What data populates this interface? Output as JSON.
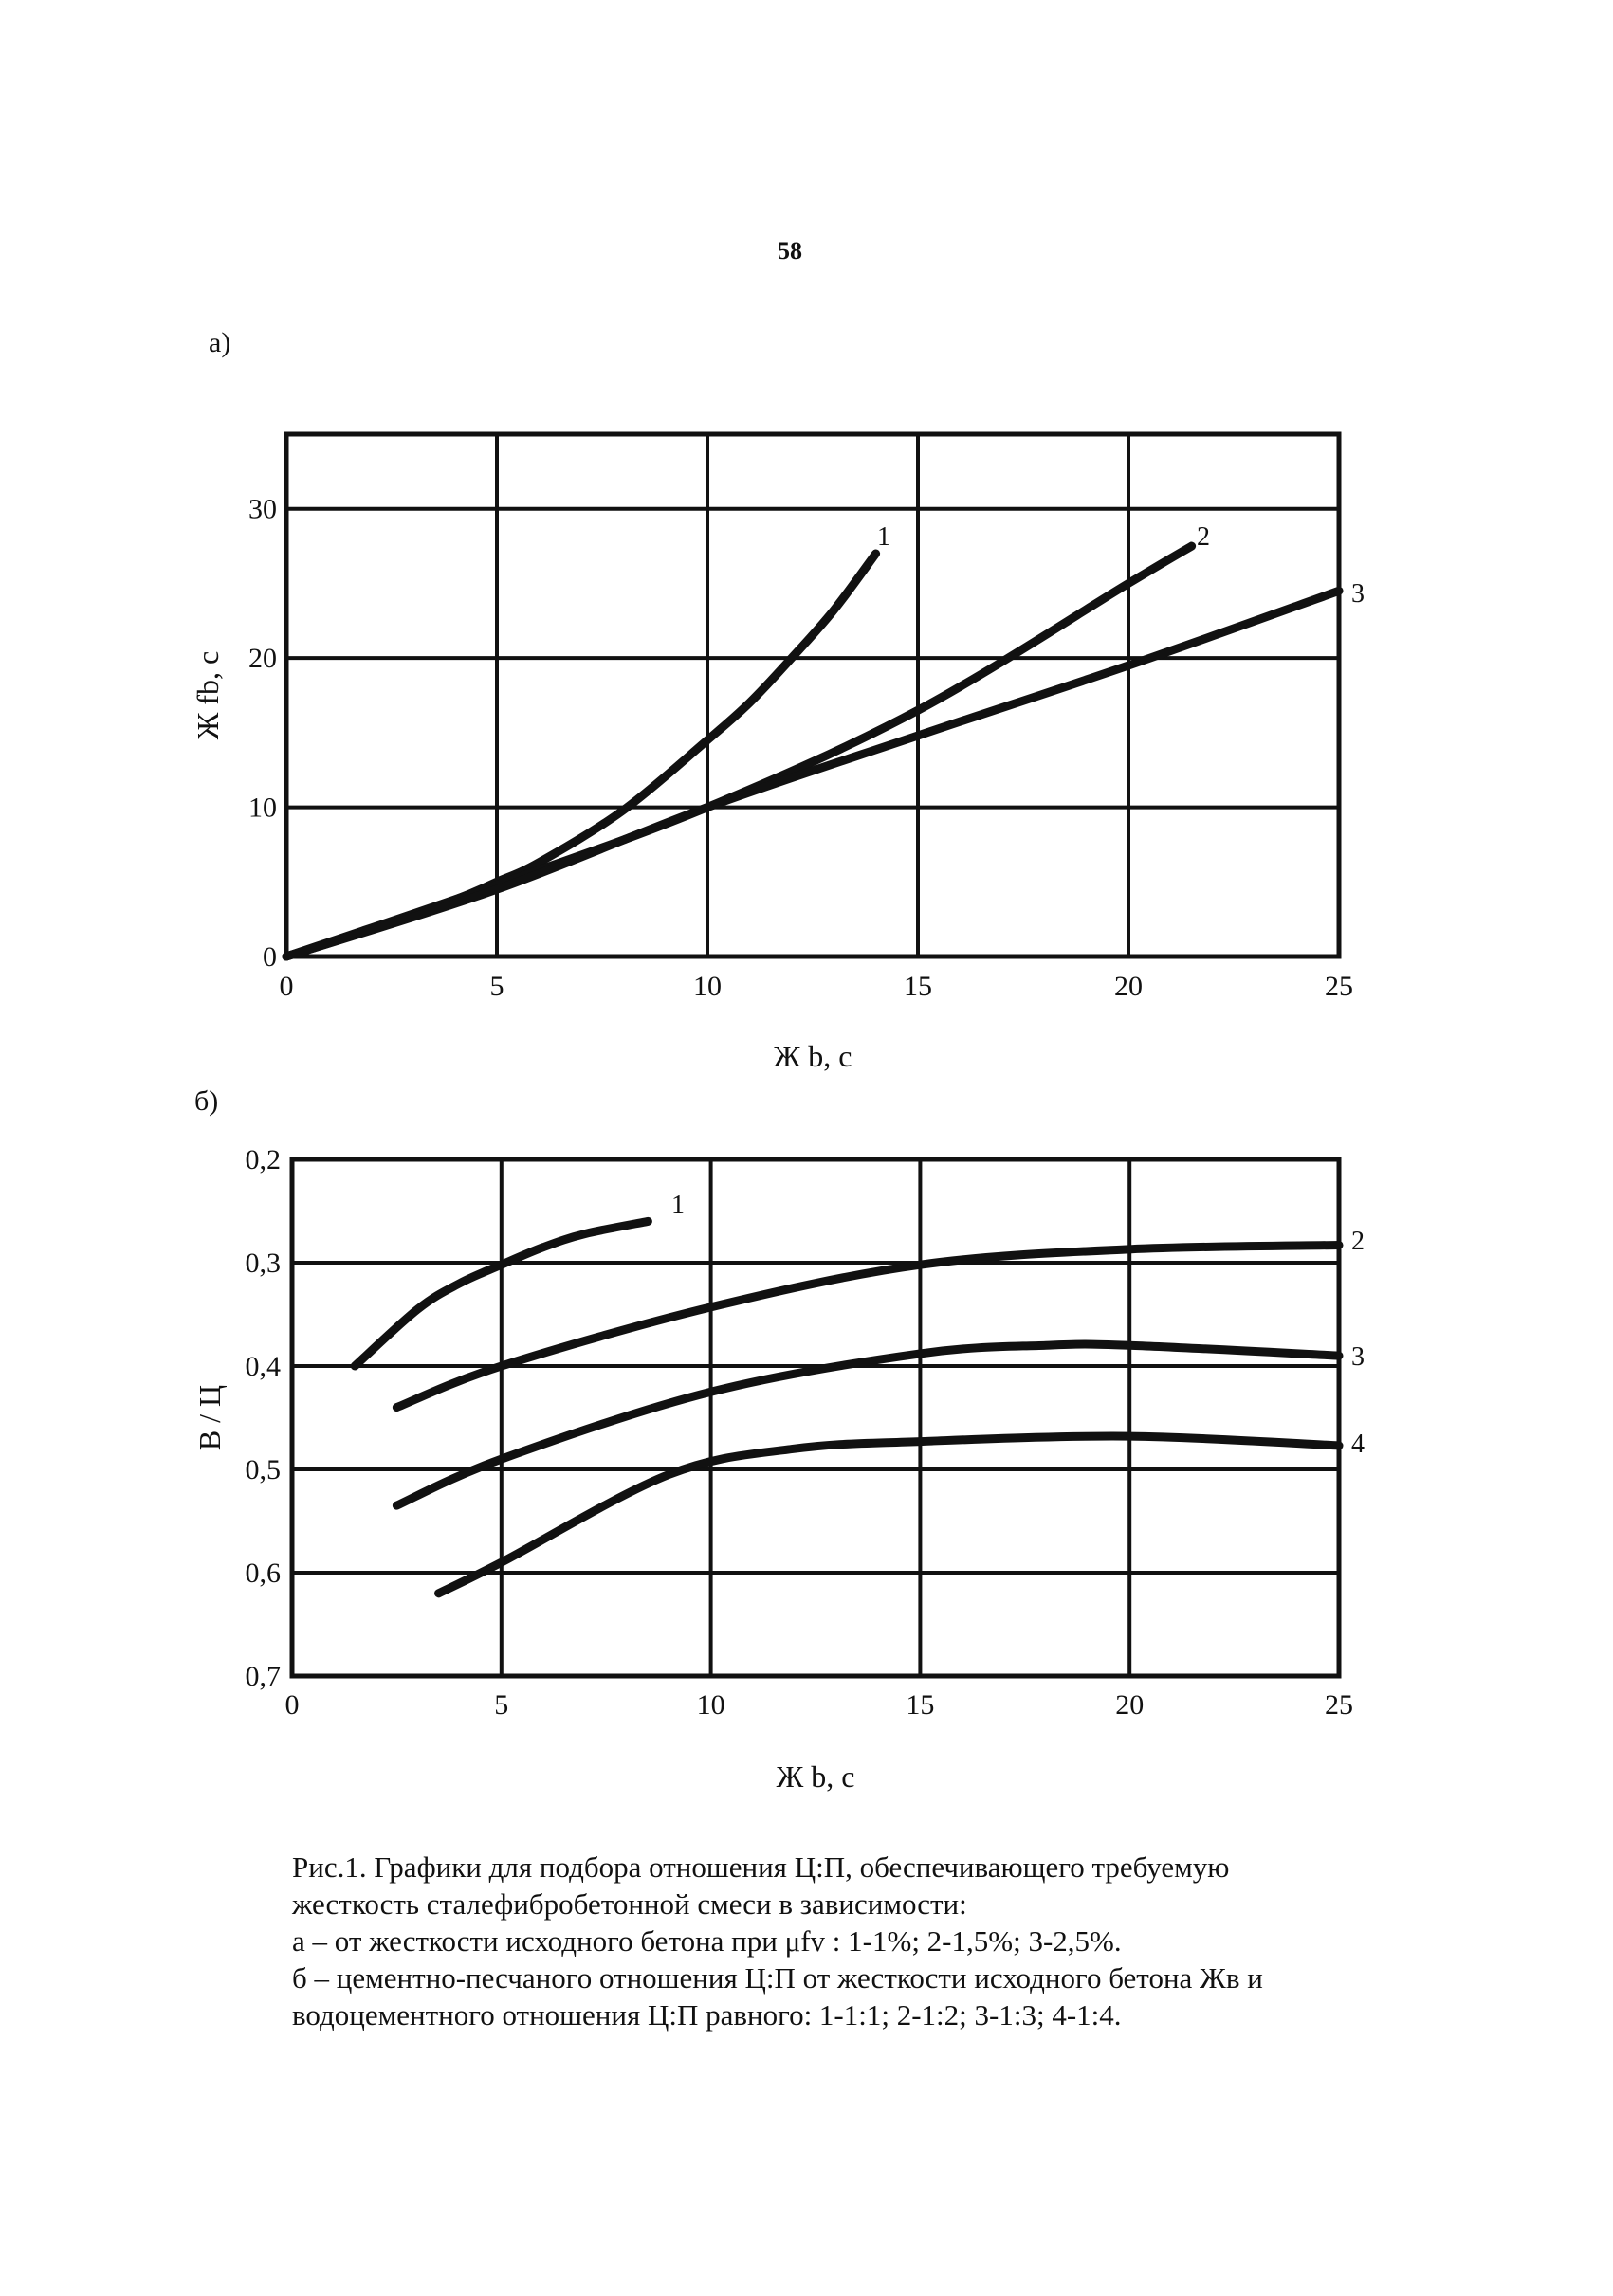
{
  "page_number": "58",
  "panel_a_label": "а)",
  "panel_b_label": "б)",
  "caption": {
    "line1": "Рис.1. Графики для подбора отношения Ц:П, обеспечивающего требуемую",
    "line2": "жесткость сталефибробетонной смеси в зависимости:",
    "line3": "а – от жесткости исходного бетона при μfv : 1-1%; 2-1,5%; 3-2,5%.",
    "line4": "б – цементно-песчаного отношения Ц:П от жесткости исходного бетона Жв и",
    "line5": "водоцементного отношения Ц:П равного: 1-1:1; 2-1:2;  3-1:3; 4-1:4."
  },
  "chart_data": [
    {
      "type": "line",
      "panel": "а)",
      "xlabel": "Ж b, c",
      "ylabel": "Ж fb, c",
      "xlim": [
        0,
        25
      ],
      "ylim": [
        0,
        35
      ],
      "xticks": [
        0,
        5,
        10,
        15,
        20,
        25
      ],
      "yticks": [
        0,
        10,
        20,
        30
      ],
      "xtick_labels": [
        "0",
        "5",
        "10",
        "15",
        "20",
        "25"
      ],
      "ytick_labels": [
        "0",
        "10",
        "20",
        "30"
      ],
      "grid": true,
      "series": [
        {
          "name": "1",
          "x": [
            0,
            2,
            4,
            5,
            6,
            8,
            10,
            11,
            12,
            13,
            14
          ],
          "y": [
            0,
            1.8,
            3.8,
            5,
            6.3,
            9.8,
            14.5,
            17,
            20,
            23.2,
            27
          ]
        },
        {
          "name": "2",
          "x": [
            0,
            5,
            10,
            15,
            20,
            21.5
          ],
          "y": [
            0,
            4.8,
            10,
            16.5,
            25,
            27.5
          ]
        },
        {
          "name": "3",
          "x": [
            0,
            5,
            10,
            15,
            20,
            25
          ],
          "y": [
            0,
            4.5,
            10,
            14.8,
            19.5,
            24.5
          ]
        }
      ]
    },
    {
      "type": "line",
      "panel": "б)",
      "xlabel": "Ж b, c",
      "ylabel": "В / Ц",
      "xlim": [
        0,
        25
      ],
      "ylim": [
        0.7,
        0.2
      ],
      "xticks": [
        0,
        5,
        10,
        15,
        20,
        25
      ],
      "yticks": [
        0.2,
        0.3,
        0.4,
        0.5,
        0.6,
        0.7
      ],
      "xtick_labels": [
        "0",
        "5",
        "10",
        "15",
        "20",
        "25"
      ],
      "ytick_labels": [
        "0,2",
        "0,3",
        "0,4",
        "0,5",
        "0,6",
        "0,7"
      ],
      "grid": true,
      "series": [
        {
          "name": "1",
          "x": [
            1.5,
            3,
            4,
            5,
            6,
            7,
            8.5
          ],
          "y": [
            0.4,
            0.345,
            0.32,
            0.302,
            0.285,
            0.272,
            0.26
          ]
        },
        {
          "name": "2",
          "x": [
            2.5,
            5,
            10,
            15,
            20,
            25
          ],
          "y": [
            0.44,
            0.4,
            0.343,
            0.302,
            0.287,
            0.283
          ]
        },
        {
          "name": "3",
          "x": [
            2.5,
            5,
            10,
            15,
            18,
            20,
            25
          ],
          "y": [
            0.535,
            0.49,
            0.425,
            0.388,
            0.38,
            0.38,
            0.39
          ]
        },
        {
          "name": "4",
          "x": [
            3.5,
            5,
            9,
            12,
            15,
            20,
            25
          ],
          "y": [
            0.62,
            0.59,
            0.505,
            0.48,
            0.473,
            0.468,
            0.477
          ]
        }
      ]
    }
  ]
}
